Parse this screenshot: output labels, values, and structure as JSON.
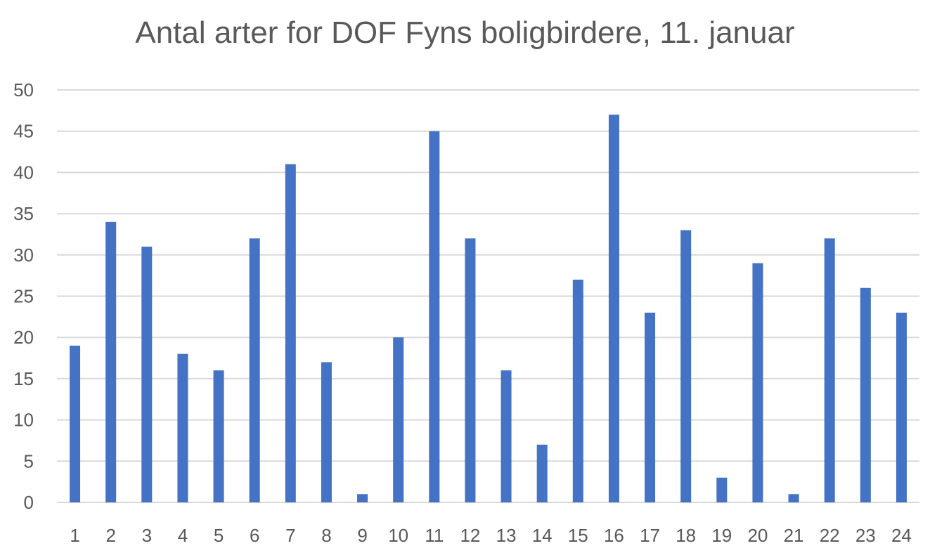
{
  "chart_data": {
    "type": "bar",
    "title": "Antal arter for DOF Fyns boligbirdere, 11. januar",
    "xlabel": "",
    "ylabel": "",
    "categories": [
      "1",
      "2",
      "3",
      "4",
      "5",
      "6",
      "7",
      "8",
      "9",
      "10",
      "11",
      "12",
      "13",
      "14",
      "15",
      "16",
      "17",
      "18",
      "19",
      "20",
      "21",
      "22",
      "23",
      "24"
    ],
    "values": [
      19,
      34,
      31,
      18,
      16,
      32,
      41,
      17,
      1,
      20,
      45,
      32,
      16,
      7,
      27,
      47,
      23,
      33,
      3,
      29,
      1,
      32,
      26,
      23
    ],
    "ylim": [
      0,
      50
    ],
    "yticks": [
      0,
      5,
      10,
      15,
      20,
      25,
      30,
      35,
      40,
      45,
      50
    ],
    "grid": true,
    "legend": "none",
    "colors": {
      "bar": "#4472C4",
      "grid": "#D9D9D9",
      "text": "#595959"
    }
  }
}
